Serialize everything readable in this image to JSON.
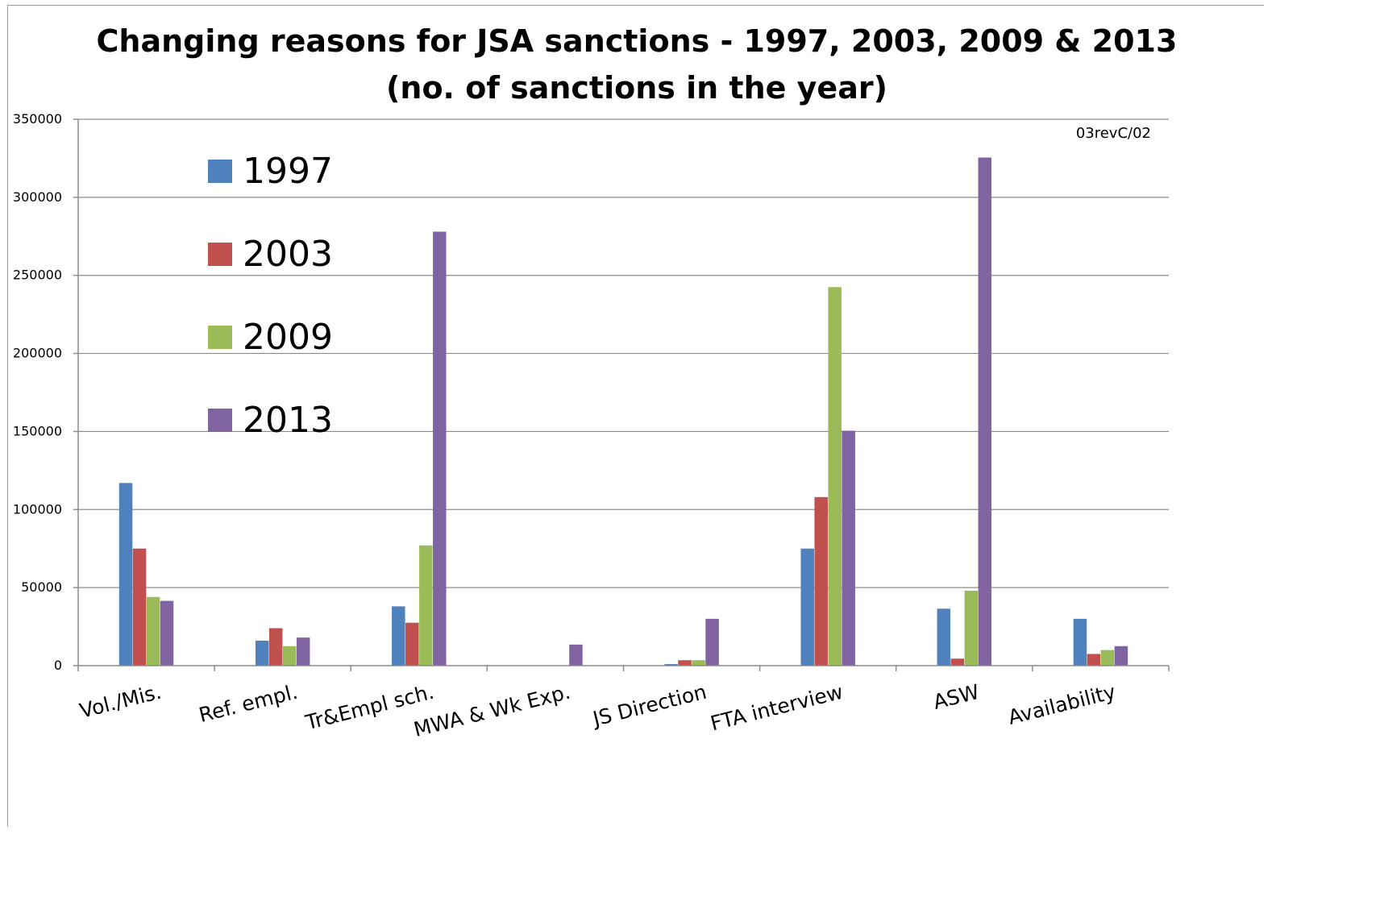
{
  "chart_data": {
    "type": "bar",
    "title": "Changing reasons for JSA sanctions - 1997, 2003, 2009 & 2013",
    "subtitle": "(no. of sanctions in the year)",
    "annotation": "03revC/02",
    "categories": [
      "Vol./Mis.",
      "Ref. empl.",
      "Tr&Empl sch.",
      "MWA & Wk Exp.",
      "JS Direction",
      "FTA interview",
      "ASW",
      "Availability"
    ],
    "series": [
      {
        "name": "1997",
        "color": "#4f81bd",
        "values": [
          117000,
          16000,
          38000,
          0,
          1000,
          75000,
          36500,
          30000
        ]
      },
      {
        "name": "2003",
        "color": "#c0504d",
        "values": [
          75000,
          24000,
          27500,
          0,
          3500,
          108000,
          4500,
          7500
        ]
      },
      {
        "name": "2009",
        "color": "#9bbb59",
        "values": [
          44000,
          12500,
          77000,
          0,
          3500,
          242500,
          48000,
          10000
        ]
      },
      {
        "name": "2013",
        "color": "#8064a2",
        "values": [
          41500,
          18000,
          278000,
          13500,
          30000,
          150500,
          325500,
          12500
        ]
      }
    ],
    "ylim": [
      0,
      350000
    ],
    "yticks": [
      0,
      50000,
      100000,
      150000,
      200000,
      250000,
      300000,
      350000
    ],
    "xlabel": "",
    "ylabel": "",
    "grid": true,
    "legend_position": "top-left inside plot"
  }
}
